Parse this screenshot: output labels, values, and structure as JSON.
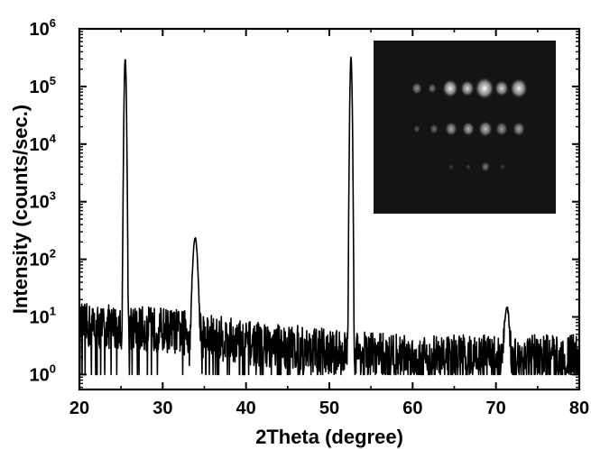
{
  "chart_data": {
    "type": "line",
    "xlabel": "2Theta (degree)",
    "ylabel": "Intensity (counts/sec.)",
    "xlim": [
      20,
      80
    ],
    "ylim": [
      0.55,
      1000000
    ],
    "y_scale": "log",
    "grid": false,
    "x_ticks": [
      "20",
      "30",
      "40",
      "50",
      "60",
      "70",
      "80"
    ],
    "y_ticks": [
      {
        "base": "10",
        "exp": "0"
      },
      {
        "base": "10",
        "exp": "1"
      },
      {
        "base": "10",
        "exp": "2"
      },
      {
        "base": "10",
        "exp": "3"
      },
      {
        "base": "10",
        "exp": "4"
      },
      {
        "base": "10",
        "exp": "5"
      },
      {
        "base": "10",
        "exp": "6"
      }
    ],
    "peaks": [
      {
        "x": 25.5,
        "y": 300000
      },
      {
        "x": 33.9,
        "y": 230
      },
      {
        "x": 52.6,
        "y": 320000
      },
      {
        "x": 71.3,
        "y": 12
      }
    ],
    "background": {
      "x_start": 20,
      "x_end": 80,
      "baseline": [
        {
          "x": 20,
          "y": 7
        },
        {
          "x": 30,
          "y": 6
        },
        {
          "x": 40,
          "y": 3.5
        },
        {
          "x": 50,
          "y": 2.5
        },
        {
          "x": 60,
          "y": 2
        },
        {
          "x": 70,
          "y": 2
        },
        {
          "x": 80,
          "y": 2
        }
      ]
    },
    "inset": {
      "type": "diffraction-pattern-image",
      "background": "#141414"
    }
  }
}
